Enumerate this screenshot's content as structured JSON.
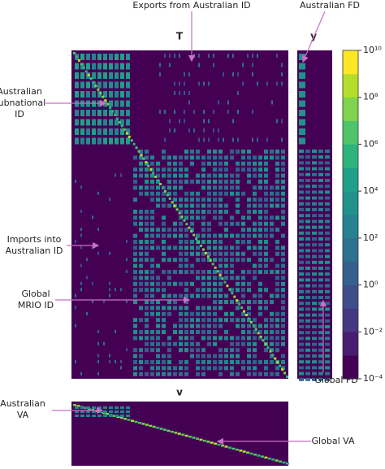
{
  "texts": {
    "exports_label": "Exports from Australian ID",
    "aus_fd_label": "Australian FD",
    "aus_sub_label": [
      "Australian",
      "subnational",
      "ID"
    ],
    "imports_label": [
      "Imports into",
      "Australian ID"
    ],
    "global_mrio_label": [
      "Global",
      "MRIO ID"
    ],
    "global_fd_label": "Global FD",
    "aus_va_label": [
      "Australian",
      "VA"
    ],
    "global_va_label": "Global VA"
  },
  "chart_data": {
    "type": "heatmap",
    "panels": {
      "T": "T",
      "y": "y",
      "v": "v"
    },
    "colorbar": {
      "log": true,
      "ylim": [
        0.0001,
        10000000000
      ],
      "yticks": [
        {
          "value": 0.0001,
          "label": "10⁻⁴"
        },
        {
          "value": 0.01,
          "label": "10⁻²"
        },
        {
          "value": 1,
          "label": "10⁰"
        },
        {
          "value": 100,
          "label": "10²"
        },
        {
          "value": 10000,
          "label": "10⁴"
        },
        {
          "value": 1000000,
          "label": "10⁶"
        },
        {
          "value": 100000000,
          "label": "10⁸"
        },
        {
          "value": 10000000000,
          "label": "10¹⁰"
        }
      ],
      "colors": [
        "#440154",
        "#481d6f",
        "#453781",
        "#3d4e8a",
        "#355f8d",
        "#2c718e",
        "#26828e",
        "#21918c",
        "#1fa088",
        "#2eb37c",
        "#50c46a",
        "#7fd34e",
        "#b5de2b",
        "#fde725"
      ]
    }
  }
}
